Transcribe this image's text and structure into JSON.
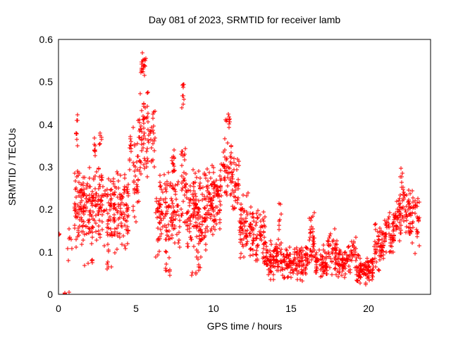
{
  "window": {
    "background": "#ffffff"
  },
  "chart_data": {
    "type": "scatter",
    "title": "Day 081 of 2023, SRMTID for receiver lamb",
    "xlabel": "GPS time / hours",
    "ylabel": "SRMTID / TECUs",
    "xlim": [
      0,
      24
    ],
    "ylim": [
      0,
      0.6
    ],
    "xticks": [
      0,
      5,
      10,
      15,
      20
    ],
    "xtick_labels": [
      "0",
      "5",
      "10",
      "15",
      "20"
    ],
    "yticks": [
      0,
      0.1,
      0.2,
      0.3,
      0.4,
      0.5,
      0.6
    ],
    "ytick_labels": [
      "0",
      "0.1",
      "0.2",
      "0.3",
      "0.4",
      "0.5",
      "0.6"
    ],
    "grid": true,
    "grid_style": "dashed",
    "grid_color": "#a8a8a8",
    "frame_color": "#000000",
    "text_color": "#000000",
    "marker": "plus",
    "marker_color": "#ff0000",
    "marker_size_px": 7,
    "series_name": "SRMTID for receiver lamb",
    "n_points_approx": 2050,
    "summary": "Dense columnar scatter. Max ~0.575 TECUs near 5.5 h; secondary peaks ~0.51 at 8 h, ~0.435 at 1 h and 11 h, ~0.40 at 2.7 and 4.7 h. Values decline after 11.5 h to a low band 0.03-0.12 between 14 and 20 h (small bumps ~0.21 at 16.3 h, ~0.16 at 17.6 h), then rise again to ~0.31 near 22.1 h, ending ~23.3 h. Isolated points at y=0 near 0.3-0.8 h and a stack at ~0.14 on the left axis.",
    "scatter_segments_format": [
      "t_start_hours",
      "t_end_hours",
      "n_points",
      "y_min_TECUs",
      "y_max_TECUs"
    ],
    "scatter_segments": [
      [
        0.0,
        0.08,
        3,
        0.135,
        0.15
      ],
      [
        0.3,
        0.45,
        2,
        0.0,
        0.006
      ],
      [
        0.6,
        0.85,
        3,
        0.0,
        0.01
      ],
      [
        0.55,
        1.0,
        7,
        0.07,
        0.17
      ],
      [
        1.0,
        1.35,
        40,
        0.09,
        0.32
      ],
      [
        1.05,
        1.3,
        8,
        0.33,
        0.435
      ],
      [
        1.35,
        2.5,
        120,
        0.1,
        0.31
      ],
      [
        1.6,
        2.3,
        6,
        0.05,
        0.09
      ],
      [
        2.2,
        2.5,
        8,
        0.31,
        0.37
      ],
      [
        2.55,
        2.85,
        40,
        0.1,
        0.33
      ],
      [
        2.6,
        2.78,
        7,
        0.34,
        0.4
      ],
      [
        2.85,
        4.55,
        150,
        0.09,
        0.3
      ],
      [
        3.1,
        3.5,
        5,
        0.05,
        0.085
      ],
      [
        4.55,
        4.78,
        12,
        0.28,
        0.4
      ],
      [
        4.78,
        5.2,
        35,
        0.15,
        0.43
      ],
      [
        5.2,
        5.85,
        60,
        0.25,
        0.5
      ],
      [
        5.3,
        5.65,
        22,
        0.5,
        0.575
      ],
      [
        5.85,
        6.25,
        22,
        0.25,
        0.46
      ],
      [
        6.25,
        7.85,
        140,
        0.08,
        0.31
      ],
      [
        6.8,
        7.3,
        8,
        0.04,
        0.075
      ],
      [
        7.25,
        7.55,
        10,
        0.28,
        0.35
      ],
      [
        7.85,
        8.2,
        28,
        0.12,
        0.38
      ],
      [
        7.9,
        8.12,
        9,
        0.42,
        0.51
      ],
      [
        8.2,
        9.55,
        150,
        0.08,
        0.3
      ],
      [
        8.6,
        9.15,
        8,
        0.04,
        0.075
      ],
      [
        9.55,
        10.55,
        110,
        0.13,
        0.33
      ],
      [
        10.6,
        11.15,
        40,
        0.22,
        0.38
      ],
      [
        10.75,
        11.05,
        12,
        0.38,
        0.435
      ],
      [
        11.1,
        11.65,
        42,
        0.17,
        0.33
      ],
      [
        11.65,
        12.25,
        55,
        0.08,
        0.24
      ],
      [
        12.25,
        13.35,
        85,
        0.05,
        0.22
      ],
      [
        13.35,
        14.45,
        90,
        0.03,
        0.13
      ],
      [
        14.2,
        14.4,
        7,
        0.14,
        0.24
      ],
      [
        14.45,
        15.85,
        110,
        0.03,
        0.12
      ],
      [
        15.85,
        16.15,
        25,
        0.04,
        0.13
      ],
      [
        16.15,
        16.55,
        35,
        0.05,
        0.21
      ],
      [
        16.55,
        17.35,
        65,
        0.03,
        0.12
      ],
      [
        17.35,
        18.0,
        45,
        0.04,
        0.16
      ],
      [
        18.0,
        18.8,
        65,
        0.03,
        0.12
      ],
      [
        18.8,
        19.2,
        30,
        0.04,
        0.145
      ],
      [
        19.2,
        20.35,
        95,
        0.02,
        0.1
      ],
      [
        20.35,
        21.0,
        55,
        0.04,
        0.19
      ],
      [
        21.0,
        21.7,
        55,
        0.08,
        0.21
      ],
      [
        21.7,
        22.15,
        40,
        0.1,
        0.25
      ],
      [
        22.0,
        22.18,
        6,
        0.25,
        0.31
      ],
      [
        22.18,
        22.95,
        65,
        0.12,
        0.26
      ],
      [
        22.95,
        23.3,
        22,
        0.09,
        0.25
      ]
    ]
  }
}
